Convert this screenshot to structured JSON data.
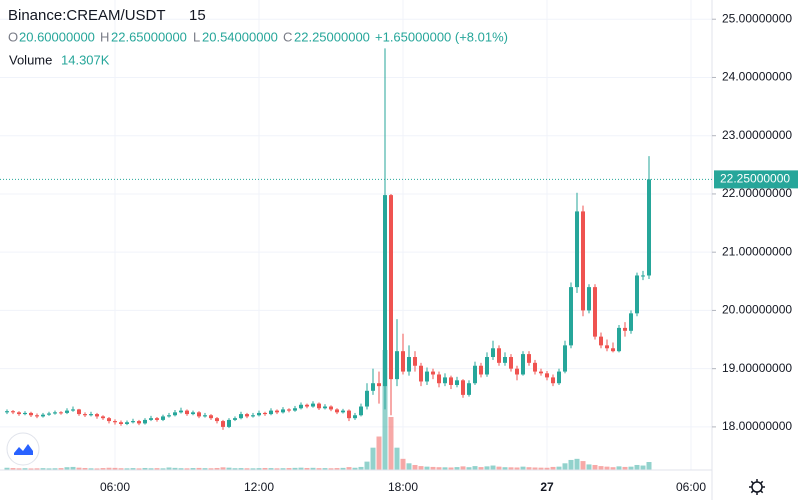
{
  "chart_data": {
    "type": "candlestick",
    "title": "Binance:CREAM/USDT",
    "interval": "15",
    "legend": {
      "o": "O",
      "open": "20.60000000",
      "h": "H",
      "high": "22.65000000",
      "l": "L",
      "low": "20.54000000",
      "c": "C",
      "close": "22.25000000",
      "change": "+1.65000000 (+8.01%)"
    },
    "volume_label": "Volume",
    "volume_value_label": "14.307K",
    "last_price_label": "22.25000000",
    "up_color": "#26a69a",
    "down_color": "#ef5350",
    "ylim": [
      17.26,
      25.33
    ],
    "yticks": [
      {
        "value": 18,
        "label": "18.00000000"
      },
      {
        "value": 19,
        "label": "19.00000000"
      },
      {
        "value": 20,
        "label": "20.00000000"
      },
      {
        "value": 21,
        "label": "21.00000000"
      },
      {
        "value": 22,
        "label": "22.00000000"
      },
      {
        "value": 23,
        "label": "23.00000000"
      },
      {
        "value": 24,
        "label": "24.00000000"
      },
      {
        "value": 25,
        "label": "25.00000000"
      }
    ],
    "xlim": [
      -1.1667,
      117.5
    ],
    "xticks": [
      {
        "value": 18,
        "label": "06:00"
      },
      {
        "value": 42,
        "label": "12:00"
      },
      {
        "value": 66,
        "label": "18:00"
      },
      {
        "value": 90,
        "label": "27"
      },
      {
        "value": 114,
        "label": "06:00"
      }
    ],
    "grid": true,
    "ohlc": [
      [
        18.25,
        18.3,
        18.22,
        18.27
      ],
      [
        18.27,
        18.29,
        18.22,
        18.25
      ],
      [
        18.25,
        18.27,
        18.19,
        18.22
      ],
      [
        18.22,
        18.27,
        18.2,
        18.24
      ],
      [
        18.24,
        18.26,
        18.17,
        18.2
      ],
      [
        18.2,
        18.23,
        18.15,
        18.18
      ],
      [
        18.18,
        18.24,
        18.16,
        18.21
      ],
      [
        18.21,
        18.26,
        18.19,
        18.23
      ],
      [
        18.23,
        18.28,
        18.21,
        18.25
      ],
      [
        18.25,
        18.27,
        18.21,
        18.24
      ],
      [
        18.24,
        18.32,
        18.22,
        18.28
      ],
      [
        18.28,
        18.35,
        18.26,
        18.3
      ],
      [
        18.3,
        18.31,
        18.19,
        18.22
      ],
      [
        18.22,
        18.25,
        18.17,
        18.2
      ],
      [
        18.2,
        18.26,
        18.18,
        18.22
      ],
      [
        18.22,
        18.24,
        18.14,
        18.18
      ],
      [
        18.18,
        18.2,
        18.12,
        18.15
      ],
      [
        18.15,
        18.17,
        18.06,
        18.1
      ],
      [
        18.1,
        18.13,
        18.04,
        18.08
      ],
      [
        18.08,
        18.11,
        18.02,
        18.05
      ],
      [
        18.05,
        18.11,
        18.03,
        18.08
      ],
      [
        18.08,
        18.14,
        18.06,
        18.1
      ],
      [
        18.1,
        18.12,
        18.03,
        18.06
      ],
      [
        18.06,
        18.15,
        18.04,
        18.12
      ],
      [
        18.12,
        18.19,
        18.1,
        18.15
      ],
      [
        18.15,
        18.17,
        18.09,
        18.12
      ],
      [
        18.12,
        18.21,
        18.1,
        18.18
      ],
      [
        18.18,
        18.24,
        18.16,
        18.2
      ],
      [
        18.2,
        18.29,
        18.18,
        18.25
      ],
      [
        18.25,
        18.33,
        18.23,
        18.28
      ],
      [
        18.28,
        18.3,
        18.19,
        18.22
      ],
      [
        18.22,
        18.28,
        18.2,
        18.25
      ],
      [
        18.25,
        18.27,
        18.15,
        18.18
      ],
      [
        18.18,
        18.24,
        18.16,
        18.2
      ],
      [
        18.2,
        18.22,
        18.12,
        18.15
      ],
      [
        18.15,
        18.17,
        18.06,
        18.1
      ],
      [
        18.1,
        18.12,
        17.95,
        18.0
      ],
      [
        18.0,
        18.15,
        17.98,
        18.12
      ],
      [
        18.12,
        18.18,
        18.1,
        18.15
      ],
      [
        18.15,
        18.26,
        18.13,
        18.22
      ],
      [
        18.22,
        18.24,
        18.15,
        18.18
      ],
      [
        18.18,
        18.24,
        18.16,
        18.2
      ],
      [
        18.2,
        18.28,
        18.18,
        18.24
      ],
      [
        18.24,
        18.26,
        18.19,
        18.22
      ],
      [
        18.22,
        18.32,
        18.2,
        18.28
      ],
      [
        18.28,
        18.3,
        18.22,
        18.25
      ],
      [
        18.25,
        18.34,
        18.23,
        18.3
      ],
      [
        18.3,
        18.32,
        18.25,
        18.28
      ],
      [
        18.28,
        18.36,
        18.26,
        18.32
      ],
      [
        18.32,
        18.42,
        18.3,
        18.38
      ],
      [
        18.38,
        18.4,
        18.32,
        18.35
      ],
      [
        18.35,
        18.44,
        18.33,
        18.4
      ],
      [
        18.4,
        18.42,
        18.29,
        18.32
      ],
      [
        18.32,
        18.39,
        18.3,
        18.35
      ],
      [
        18.35,
        18.37,
        18.27,
        18.3
      ],
      [
        18.3,
        18.32,
        18.22,
        18.25
      ],
      [
        18.25,
        18.31,
        18.23,
        18.28
      ],
      [
        18.28,
        18.3,
        18.1,
        18.15
      ],
      [
        18.15,
        18.24,
        18.12,
        18.2
      ],
      [
        18.2,
        18.4,
        18.18,
        18.35
      ],
      [
        18.35,
        18.75,
        18.3,
        18.62
      ],
      [
        18.62,
        19.0,
        18.55,
        18.75
      ],
      [
        18.75,
        18.95,
        18.4,
        18.7
      ],
      [
        18.7,
        24.5,
        18.3,
        21.98
      ],
      [
        21.98,
        22.0,
        18.2,
        18.82
      ],
      [
        18.82,
        19.85,
        18.7,
        19.3
      ],
      [
        19.3,
        19.6,
        18.9,
        18.95
      ],
      [
        18.95,
        19.4,
        18.88,
        19.2
      ],
      [
        19.2,
        19.3,
        18.95,
        19.05
      ],
      [
        19.05,
        19.1,
        18.7,
        18.78
      ],
      [
        18.78,
        19.02,
        18.72,
        18.95
      ],
      [
        18.95,
        19.0,
        18.82,
        18.9
      ],
      [
        18.9,
        18.95,
        18.68,
        18.75
      ],
      [
        18.75,
        18.92,
        18.7,
        18.85
      ],
      [
        18.85,
        18.88,
        18.65,
        18.72
      ],
      [
        18.72,
        18.86,
        18.68,
        18.8
      ],
      [
        18.8,
        18.82,
        18.5,
        18.55
      ],
      [
        18.55,
        18.8,
        18.52,
        18.75
      ],
      [
        18.75,
        19.12,
        18.72,
        19.05
      ],
      [
        19.05,
        19.1,
        18.85,
        18.9
      ],
      [
        18.9,
        19.28,
        18.86,
        19.2
      ],
      [
        19.2,
        19.48,
        19.15,
        19.35
      ],
      [
        19.35,
        19.4,
        19.05,
        19.1
      ],
      [
        19.1,
        19.28,
        19.05,
        19.2
      ],
      [
        19.2,
        19.25,
        18.95,
        19.0
      ],
      [
        19.0,
        19.05,
        18.8,
        18.9
      ],
      [
        18.9,
        19.3,
        18.88,
        19.25
      ],
      [
        19.25,
        19.3,
        19.05,
        19.1
      ],
      [
        19.1,
        19.15,
        18.9,
        18.95
      ],
      [
        18.95,
        19.0,
        18.88,
        18.92
      ],
      [
        18.92,
        18.96,
        18.8,
        18.85
      ],
      [
        18.85,
        18.9,
        18.7,
        18.75
      ],
      [
        18.75,
        19.0,
        18.72,
        18.95
      ],
      [
        18.95,
        19.48,
        18.92,
        19.4
      ],
      [
        19.4,
        20.48,
        19.35,
        20.4
      ],
      [
        20.4,
        22.02,
        20.3,
        21.7
      ],
      [
        21.7,
        21.8,
        19.9,
        20.0
      ],
      [
        20.0,
        20.45,
        19.95,
        20.4
      ],
      [
        20.4,
        20.45,
        19.5,
        19.55
      ],
      [
        19.55,
        19.62,
        19.35,
        19.4
      ],
      [
        19.4,
        19.5,
        19.3,
        19.35
      ],
      [
        19.35,
        19.45,
        19.28,
        19.3
      ],
      [
        19.3,
        19.75,
        19.28,
        19.7
      ],
      [
        19.7,
        19.8,
        19.55,
        19.65
      ],
      [
        19.65,
        20.0,
        19.6,
        19.95
      ],
      [
        19.95,
        20.65,
        19.9,
        20.6
      ],
      [
        20.6,
        20.68,
        20.52,
        20.6
      ],
      [
        20.6,
        22.65,
        20.54,
        22.25
      ]
    ],
    "volume": [
      4000,
      3500,
      3000,
      3200,
      2800,
      3000,
      3300,
      2900,
      3100,
      3400,
      5000,
      5500,
      4200,
      3600,
      3000,
      2800,
      3500,
      4000,
      3800,
      3200,
      3000,
      3400,
      2900,
      3600,
      3100,
      3300,
      3000,
      4500,
      3800,
      3200,
      3000,
      3500,
      3700,
      3300,
      3100,
      3600,
      4800,
      4200,
      3200,
      3400,
      3100,
      3000,
      3300,
      3600,
      3400,
      3000,
      3200,
      3500,
      3800,
      4200,
      3600,
      3900,
      3300,
      3400,
      3100,
      3500,
      3800,
      5200,
      4000,
      5500,
      15000,
      40000,
      60000,
      215000,
      95000,
      40000,
      20000,
      12000,
      9000,
      7000,
      6000,
      5500,
      5000,
      4800,
      4500,
      5200,
      6500,
      5000,
      7000,
      5200,
      6500,
      8000,
      6000,
      5000,
      4800,
      4500,
      6000,
      5000,
      4500,
      4200,
      4000,
      5500,
      6000,
      12000,
      18000,
      20000,
      16000,
      10000,
      9000,
      7000,
      6000,
      5000,
      6500,
      5500,
      6000,
      9000,
      8000,
      14307
    ]
  }
}
